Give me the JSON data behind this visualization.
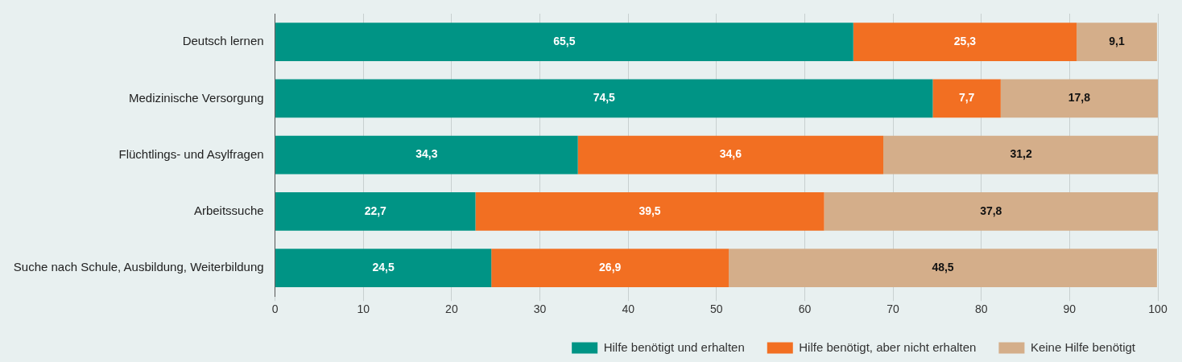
{
  "chart_data": {
    "type": "bar",
    "orientation": "horizontal",
    "stacked": true,
    "categories": [
      "Deutsch lernen",
      "Medizinische Versorgung",
      "Flüchtlings- und Asylfragen",
      "Arbeitssuche",
      "Suche nach Schule, Ausbildung, Weiterbildung"
    ],
    "series": [
      {
        "name": "Hilfe benötigt und erhalten",
        "color": "#009485",
        "values": [
          65.5,
          74.5,
          34.3,
          22.7,
          24.5
        ],
        "value_labels": [
          "65,5",
          "74,5",
          "34,3",
          "22,7",
          "24,5"
        ]
      },
      {
        "name": "Hilfe benötigt, aber nicht erhalten",
        "color": "#f26f22",
        "values": [
          25.3,
          7.7,
          34.6,
          39.5,
          26.9
        ],
        "value_labels": [
          "25,3",
          "7,7",
          "34,6",
          "39,5",
          "26,9"
        ]
      },
      {
        "name": "Keine Hilfe benötigt",
        "color": "#d4ae8a",
        "values": [
          9.1,
          17.8,
          31.2,
          37.8,
          48.5
        ],
        "value_labels": [
          "9,1",
          "17,8",
          "31,2",
          "37,8",
          "48,5"
        ]
      }
    ],
    "xlim": [
      0,
      100
    ],
    "xticks": [
      0,
      10,
      20,
      30,
      40,
      50,
      60,
      70,
      80,
      90,
      100
    ],
    "grid": "x",
    "legend": "bottom"
  }
}
